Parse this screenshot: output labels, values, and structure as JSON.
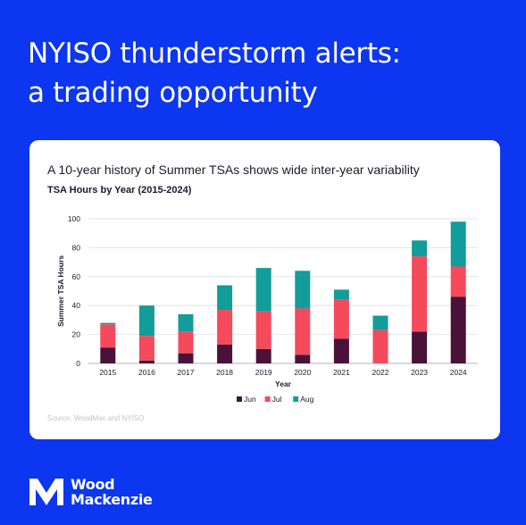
{
  "headline": {
    "line1": "NYISO thunderstorm alerts:",
    "line2": "a trading opportunity"
  },
  "card": {
    "subtitle": "A 10-year history of Summer TSAs shows wide inter-year variability",
    "source": "Source: WoodMac and NYISO"
  },
  "brand": {
    "line1": "Wood",
    "line2": "Mackenzie"
  },
  "colors": {
    "background": "#0d36f0",
    "jun": "#4a1238",
    "jul": "#f44a5c",
    "aug": "#129c9a"
  },
  "chart_data": {
    "type": "bar",
    "stacked": true,
    "title": "TSA Hours by Year (2015-2024)",
    "xlabel": "Year",
    "ylabel": "Summer TSA Hours",
    "categories": [
      "2015",
      "2016",
      "2017",
      "2018",
      "2019",
      "2020",
      "2021",
      "2022",
      "2023",
      "2024"
    ],
    "series": [
      {
        "name": "Jun",
        "color": "#4a1238",
        "values": [
          11,
          2,
          7,
          13,
          10,
          6,
          17,
          0,
          22,
          46
        ]
      },
      {
        "name": "Jul",
        "color": "#f44a5c",
        "values": [
          16,
          17,
          15,
          24,
          26,
          32,
          27,
          23,
          52,
          21
        ]
      },
      {
        "name": "Aug",
        "color": "#129c9a",
        "values": [
          1,
          21,
          12,
          17,
          30,
          26,
          7,
          10,
          11,
          31
        ]
      }
    ],
    "ylim": [
      0,
      100
    ],
    "yticks": [
      0,
      20,
      40,
      60,
      80,
      100
    ],
    "grid": true,
    "legend_position": "bottom-center"
  }
}
